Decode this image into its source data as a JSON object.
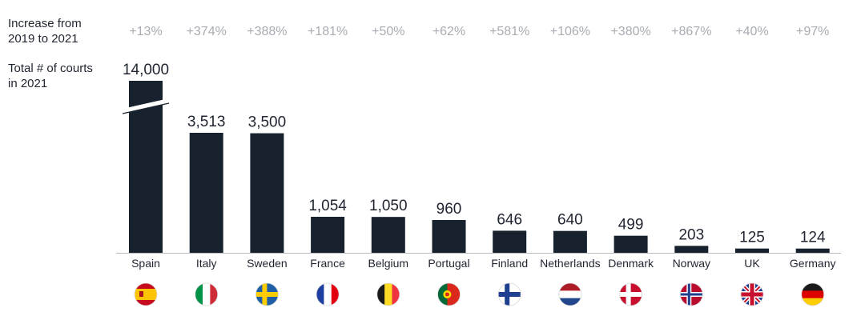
{
  "header": {
    "increase_label": "Increase from\n2019 to 2021",
    "total_label": "Total # of courts\nin 2021"
  },
  "colors": {
    "bar": "#17222e",
    "increase_text": "#a8acb2",
    "text": "#1f2430"
  },
  "chart_data": {
    "type": "bar",
    "categories": [
      "Spain",
      "Italy",
      "Sweden",
      "France",
      "Belgium",
      "Portugal",
      "Finland",
      "Netherlands",
      "Denmark",
      "Norway",
      "UK",
      "Germany"
    ],
    "values": [
      14000,
      3513,
      3500,
      1054,
      1050,
      960,
      646,
      640,
      499,
      203,
      125,
      124
    ],
    "value_labels": [
      "14,000",
      "3,513",
      "3,500",
      "1,054",
      "1,050",
      "960",
      "646",
      "640",
      "499",
      "203",
      "125",
      "124"
    ],
    "increase_labels": [
      "+13%",
      "+374%",
      "+388%",
      "+181%",
      "+50%",
      "+62%",
      "+581%",
      "+106%",
      "+380%",
      "+867%",
      "+40%",
      "+97%"
    ],
    "axis_break": true,
    "flags": [
      "spain-flag",
      "italy-flag",
      "sweden-flag",
      "france-flag",
      "belgium-flag",
      "portugal-flag",
      "finland-flag",
      "netherlands-flag",
      "denmark-flag",
      "norway-flag",
      "uk-flag",
      "germany-flag"
    ]
  }
}
